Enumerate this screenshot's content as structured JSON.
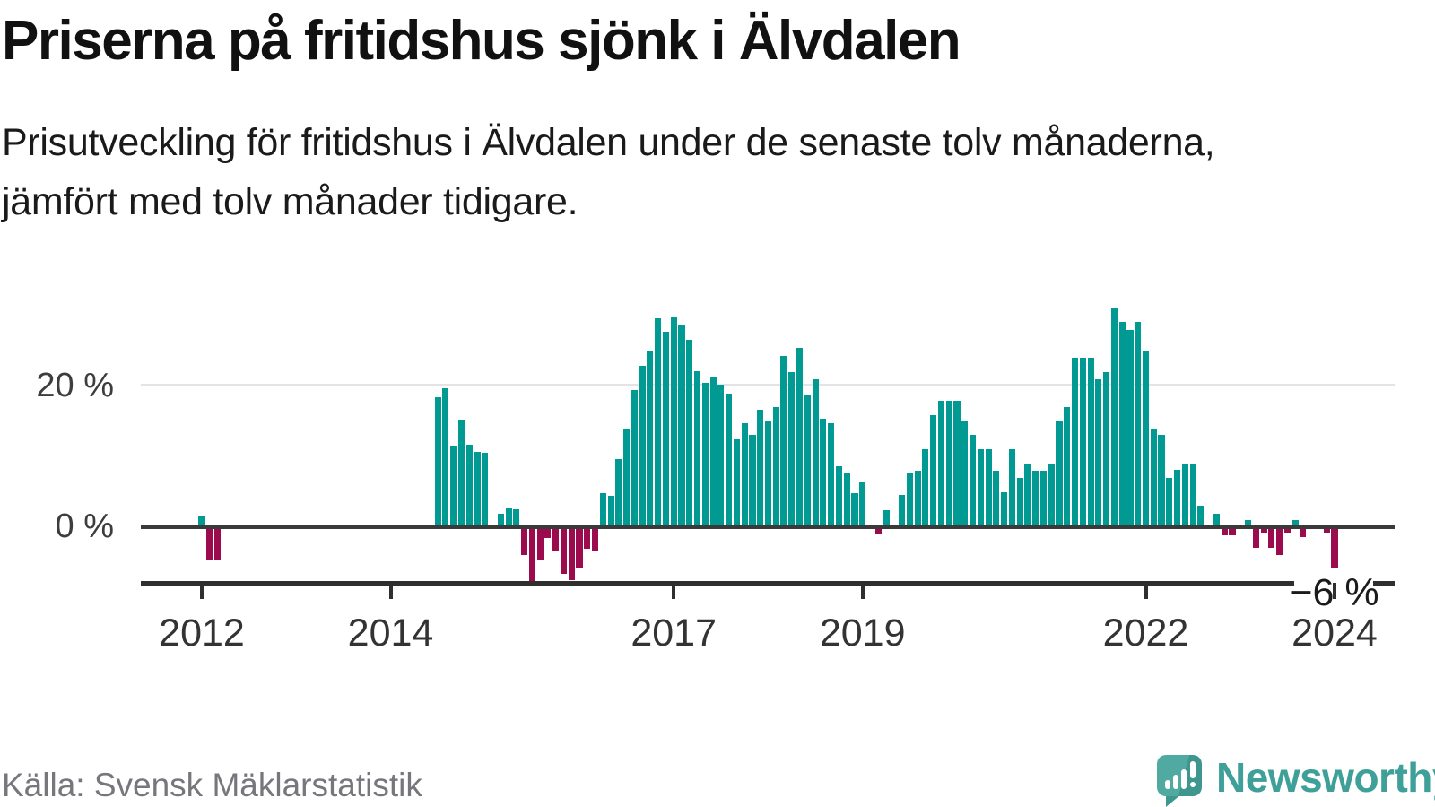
{
  "chart_data": {
    "type": "bar",
    "title": "Priserna på fritidshus sjönk i Älvdalen",
    "subtitle_lines": [
      "Prisutveckling för fritidshus i Älvdalen under de senaste tolv månaderna,",
      "jämfört med tolv månader tidigare."
    ],
    "unit": "%",
    "frequency": "monthly",
    "start_month": "2012-01",
    "end_month": "2024-01",
    "values": [
      1.4,
      -4.7,
      -4.8,
      0,
      0,
      0,
      0,
      0,
      0,
      0,
      0,
      0,
      0,
      0,
      0,
      0,
      0,
      0,
      0,
      0,
      0,
      0,
      0,
      0,
      0,
      0,
      0,
      0,
      0,
      0,
      18.3,
      19.6,
      11.5,
      15.2,
      11.6,
      10.6,
      10.4,
      0,
      1.8,
      2.7,
      2.4,
      -4.1,
      -7.8,
      -4.8,
      -1.7,
      -3.6,
      -6.7,
      -7.6,
      -6.0,
      -3.2,
      -3.4,
      4.7,
      4.4,
      9.6,
      13.9,
      19.4,
      22.8,
      24.8,
      29.6,
      27.6,
      29.7,
      28.5,
      26.5,
      22.0,
      20.4,
      21.1,
      20.1,
      18.9,
      12.4,
      14.6,
      13.0,
      16.6,
      15.1,
      17.0,
      24.2,
      21.9,
      25.3,
      18.6,
      20.9,
      15.3,
      14.7,
      8.5,
      7.6,
      4.7,
      6.4,
      0,
      -1.1,
      2.3,
      0,
      4.5,
      7.6,
      7.9,
      10.9,
      15.8,
      17.9,
      17.9,
      17.9,
      14.9,
      13.0,
      10.9,
      10.9,
      7.9,
      4.9,
      10.9,
      6.9,
      8.8,
      7.9,
      7.9,
      8.9,
      14.9,
      16.9,
      23.9,
      23.9,
      23.9,
      20.9,
      21.9,
      31.1,
      29.0,
      27.9,
      29.0,
      25.0,
      13.9,
      13.0,
      6.9,
      8.0,
      8.8,
      8.8,
      3.0,
      0,
      1.8,
      -1.3,
      -1.3,
      0,
      0.9,
      -3.1,
      -0.9,
      -3.1,
      -4.1,
      -0.9,
      0.9,
      -1.5,
      0,
      0,
      -0.9,
      -6.0
    ],
    "y_ticks": [
      {
        "label": "20 %",
        "value": 20
      },
      {
        "label": "0 %",
        "value": 0
      }
    ],
    "x_ticks": [
      {
        "label": "2012",
        "year": 2012
      },
      {
        "label": "2014",
        "year": 2014
      },
      {
        "label": "2017",
        "year": 2017
      },
      {
        "label": "2019",
        "year": 2019
      },
      {
        "label": "2022",
        "year": 2022
      },
      {
        "label": "2024",
        "year": 2024
      }
    ],
    "ylim": [
      -8.5,
      33.5
    ],
    "grid": "single light gridline at 20 %, dark baseline at 0 %",
    "legend": "none",
    "annotation": {
      "label": "−6 %",
      "value": -6,
      "month": "2024-01"
    },
    "colors": {
      "positive": "#009a92",
      "negative": "#9b0b4e"
    }
  },
  "footer": {
    "source": "Källa: Svensk Mäklarstatistik",
    "logo_text": "Newsworthy"
  }
}
